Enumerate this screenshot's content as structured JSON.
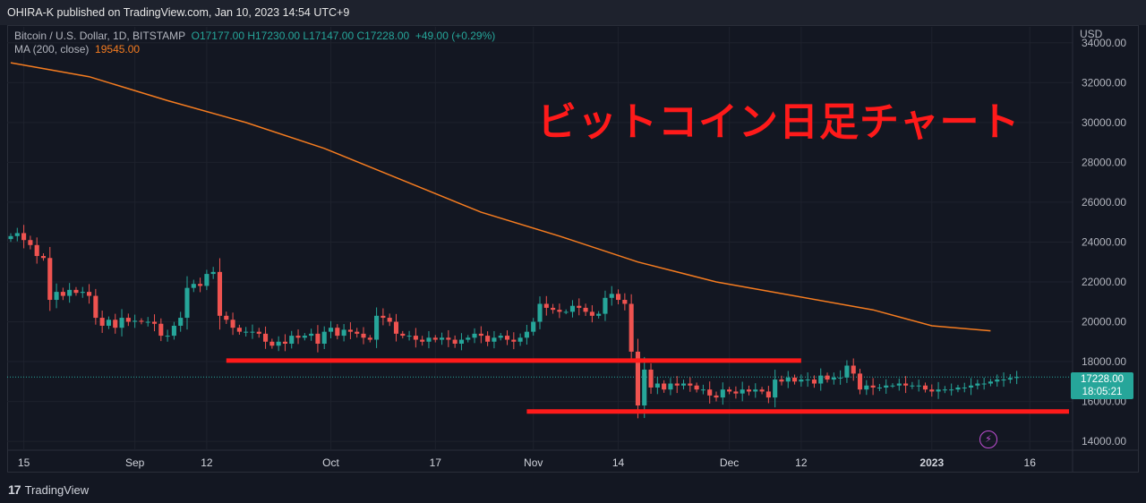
{
  "header": {
    "published_by": "OHIRA-K published on TradingView.com, Jan 10, 2023 14:54 UTC+9"
  },
  "legend": {
    "symbol": "Bitcoin / U.S. Dollar, 1D, BITSTAMP",
    "ohlc": "O17177.00 H17230.00 L17147.00 C17228.00",
    "change": "+49.00 (+0.29%)",
    "ma_label": "MA (200, close)",
    "ma_value": "19545.00"
  },
  "overlay_title": "ビットコイン日足チャート",
  "price_axis": {
    "currency": "USD",
    "current_price": "17228.00",
    "countdown": "18:05:21"
  },
  "footer": {
    "logo_text": "TradingView"
  },
  "chart_data": {
    "type": "candlestick",
    "title": "Bitcoin / U.S. Dollar, 1D, BITSTAMP",
    "ylim": [
      13600,
      34800
    ],
    "y_ticks": [
      14000,
      16000,
      18000,
      20000,
      22000,
      24000,
      26000,
      28000,
      30000,
      32000,
      34000
    ],
    "y_tick_labels": [
      "14000.00",
      "16000.00",
      "18000.00",
      "20000.00",
      "22000.00",
      "24000.00",
      "26000.00",
      "28000.00",
      "30000.00",
      "32000.00",
      "34000.00"
    ],
    "x_start_date": "2022-08-13",
    "x_end_date": "2023-01-10",
    "x_axis_end_date": "2023-01-22",
    "x_ticks": [
      {
        "date": "2022-08-15",
        "label": "15",
        "bold": false
      },
      {
        "date": "2022-09-01",
        "label": "Sep",
        "bold": false
      },
      {
        "date": "2022-09-12",
        "label": "12",
        "bold": false
      },
      {
        "date": "2022-10-01",
        "label": "Oct",
        "bold": false
      },
      {
        "date": "2022-10-17",
        "label": "17",
        "bold": false
      },
      {
        "date": "2022-11-01",
        "label": "Nov",
        "bold": false
      },
      {
        "date": "2022-11-14",
        "label": "14",
        "bold": false
      },
      {
        "date": "2022-12-01",
        "label": "Dec",
        "bold": false
      },
      {
        "date": "2022-12-12",
        "label": "12",
        "bold": false
      },
      {
        "date": "2023-01-01",
        "label": "2023",
        "bold": true
      },
      {
        "date": "2023-01-16",
        "label": "16",
        "bold": false
      }
    ],
    "close": [
      24300,
      24450,
      24100,
      23850,
      23300,
      23200,
      21100,
      21500,
      21300,
      21600,
      21450,
      21500,
      21300,
      20200,
      19800,
      20100,
      19700,
      20200,
      20000,
      20050,
      20000,
      20000,
      19900,
      19300,
      19300,
      19800,
      20200,
      21700,
      21900,
      21800,
      22400,
      22500,
      20300,
      20100,
      19700,
      19500,
      19500,
      19500,
      19400,
      19000,
      18800,
      19000,
      18900,
      19300,
      19200,
      19300,
      19400,
      18900,
      19500,
      19700,
      19300,
      19600,
      19500,
      19400,
      19200,
      19100,
      20300,
      20200,
      20000,
      19400,
      19300,
      19300,
      19100,
      19000,
      19200,
      19100,
      19200,
      19100,
      18900,
      19100,
      19200,
      19400,
      19300,
      19000,
      19200,
      19300,
      19100,
      19000,
      19200,
      19500,
      20000,
      20900,
      20700,
      20600,
      20500,
      20500,
      20800,
      20700,
      20500,
      20300,
      20400,
      21200,
      21400,
      21100,
      20900,
      18500,
      15800,
      17600,
      16700,
      16900,
      16600,
      16900,
      16800,
      16900,
      16800,
      16600,
      16600,
      16300,
      16200,
      16600,
      16500,
      16400,
      16600,
      16500,
      16600,
      16500,
      16200,
      17100,
      17000,
      17200,
      17000,
      17100,
      17100,
      16900,
      17300,
      17100,
      17200,
      17200,
      17800,
      17400,
      16600,
      16800,
      16700,
      16700,
      16800,
      16800,
      16900,
      16800,
      16800,
      16800,
      16600,
      16500,
      16600,
      16600,
      16600,
      16700,
      16700,
      16800,
      16900,
      16900,
      17000,
      17100,
      17100,
      17179,
      17228
    ],
    "ma200": {
      "name": "MA (200, close)",
      "points": [
        {
          "date": "2022-08-13",
          "value": 33000
        },
        {
          "date": "2022-08-25",
          "value": 32300
        },
        {
          "date": "2022-09-06",
          "value": 31100
        },
        {
          "date": "2022-09-18",
          "value": 30000
        },
        {
          "date": "2022-09-30",
          "value": 28700
        },
        {
          "date": "2022-10-12",
          "value": 27100
        },
        {
          "date": "2022-10-24",
          "value": 25500
        },
        {
          "date": "2022-11-05",
          "value": 24300
        },
        {
          "date": "2022-11-17",
          "value": 23000
        },
        {
          "date": "2022-11-29",
          "value": 22000
        },
        {
          "date": "2022-12-11",
          "value": 21300
        },
        {
          "date": "2022-12-23",
          "value": 20600
        },
        {
          "date": "2023-01-01",
          "value": 19800
        },
        {
          "date": "2023-01-10",
          "value": 19545
        }
      ]
    },
    "annotations": [
      {
        "type": "hline",
        "value": 18050,
        "from": "2022-09-15",
        "to": "2022-12-12",
        "color": "#ff1a1a"
      },
      {
        "type": "hline",
        "value": 15500,
        "from": "2022-10-31",
        "to": "2023-01-22",
        "color": "#ff1a1a"
      }
    ],
    "colors": {
      "up": "#26a69a",
      "down": "#ef5350",
      "ma": "#f57c20",
      "annotation": "#ff1a1a",
      "background": "#131722",
      "grid": "#1e222d"
    }
  }
}
